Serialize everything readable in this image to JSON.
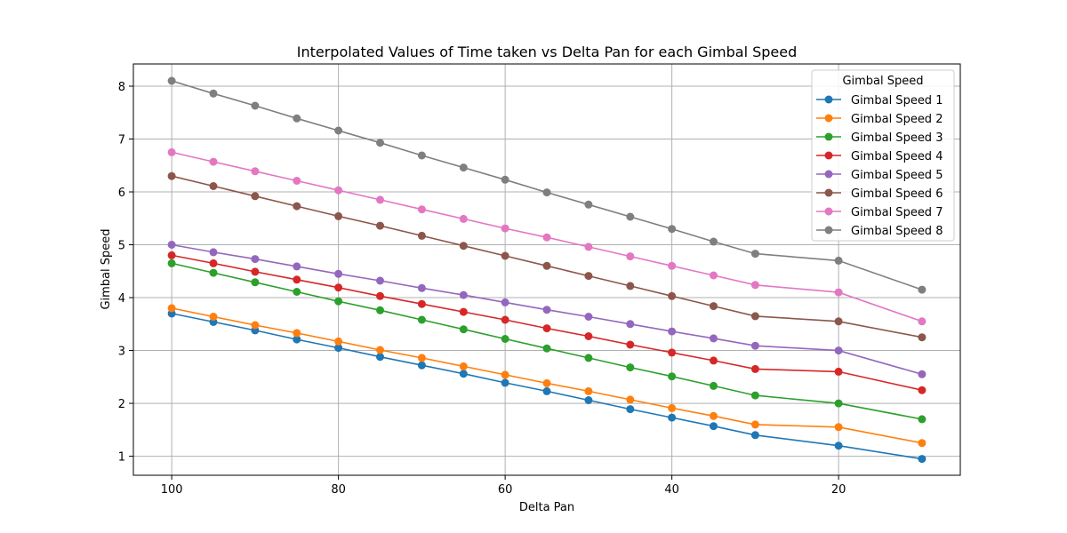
{
  "chart_data": {
    "type": "line",
    "title": "Interpolated Values of Time taken vs Delta Pan for each Gimbal Speed",
    "xlabel": "Delta Pan",
    "ylabel": "Gimbal Speed",
    "xlim": [
      104.6,
      5.4
    ],
    "ylim": [
      0.64,
      8.42
    ],
    "x_reversed": true,
    "xticks": [
      100,
      80,
      60,
      40,
      20
    ],
    "yticks": [
      1,
      2,
      3,
      4,
      5,
      6,
      7,
      8
    ],
    "grid": true,
    "legend": {
      "title": "Gimbal Speed",
      "position": "top-right"
    },
    "x": [
      100,
      95,
      90,
      85,
      80,
      75,
      70,
      65,
      60,
      55,
      50,
      45,
      40,
      35,
      30,
      20,
      10
    ],
    "series": [
      {
        "name": "Gimbal Speed 1",
        "color": "#1f77b4",
        "values": [
          3.7,
          3.54,
          3.38,
          3.21,
          3.05,
          2.88,
          2.72,
          2.56,
          2.39,
          2.23,
          2.06,
          1.89,
          1.73,
          1.57,
          1.4,
          1.2,
          0.95
        ]
      },
      {
        "name": "Gimbal Speed 2",
        "color": "#ff7f0e",
        "values": [
          3.8,
          3.64,
          3.48,
          3.33,
          3.17,
          3.01,
          2.86,
          2.7,
          2.54,
          2.38,
          2.23,
          2.07,
          1.91,
          1.76,
          1.6,
          1.55,
          1.25
        ]
      },
      {
        "name": "Gimbal Speed 3",
        "color": "#2ca02c",
        "values": [
          4.65,
          4.47,
          4.29,
          4.11,
          3.93,
          3.76,
          3.58,
          3.4,
          3.22,
          3.04,
          2.86,
          2.68,
          2.51,
          2.33,
          2.15,
          2.0,
          1.7
        ]
      },
      {
        "name": "Gimbal Speed 4",
        "color": "#d62728",
        "values": [
          4.8,
          4.65,
          4.49,
          4.34,
          4.19,
          4.03,
          3.88,
          3.73,
          3.58,
          3.42,
          3.27,
          3.11,
          2.96,
          2.81,
          2.65,
          2.6,
          2.25
        ]
      },
      {
        "name": "Gimbal Speed 5",
        "color": "#9467bd",
        "values": [
          5.0,
          4.86,
          4.73,
          4.59,
          4.45,
          4.32,
          4.18,
          4.05,
          3.91,
          3.77,
          3.64,
          3.5,
          3.36,
          3.23,
          3.09,
          3.0,
          2.55
        ]
      },
      {
        "name": "Gimbal Speed 6",
        "color": "#8c564b",
        "values": [
          6.3,
          6.11,
          5.92,
          5.73,
          5.54,
          5.36,
          5.17,
          4.98,
          4.79,
          4.6,
          4.41,
          4.22,
          4.03,
          3.84,
          3.65,
          3.55,
          3.25
        ]
      },
      {
        "name": "Gimbal Speed 7",
        "color": "#e377c2",
        "values": [
          6.75,
          6.57,
          6.39,
          6.21,
          6.03,
          5.85,
          5.67,
          5.49,
          5.31,
          5.14,
          4.96,
          4.78,
          4.6,
          4.42,
          4.24,
          4.1,
          3.55
        ]
      },
      {
        "name": "Gimbal Speed 8",
        "color": "#7f7f7f",
        "values": [
          8.1,
          7.86,
          7.63,
          7.39,
          7.16,
          6.93,
          6.69,
          6.46,
          6.23,
          5.99,
          5.76,
          5.53,
          5.3,
          5.06,
          4.83,
          4.7,
          4.15
        ]
      }
    ]
  }
}
